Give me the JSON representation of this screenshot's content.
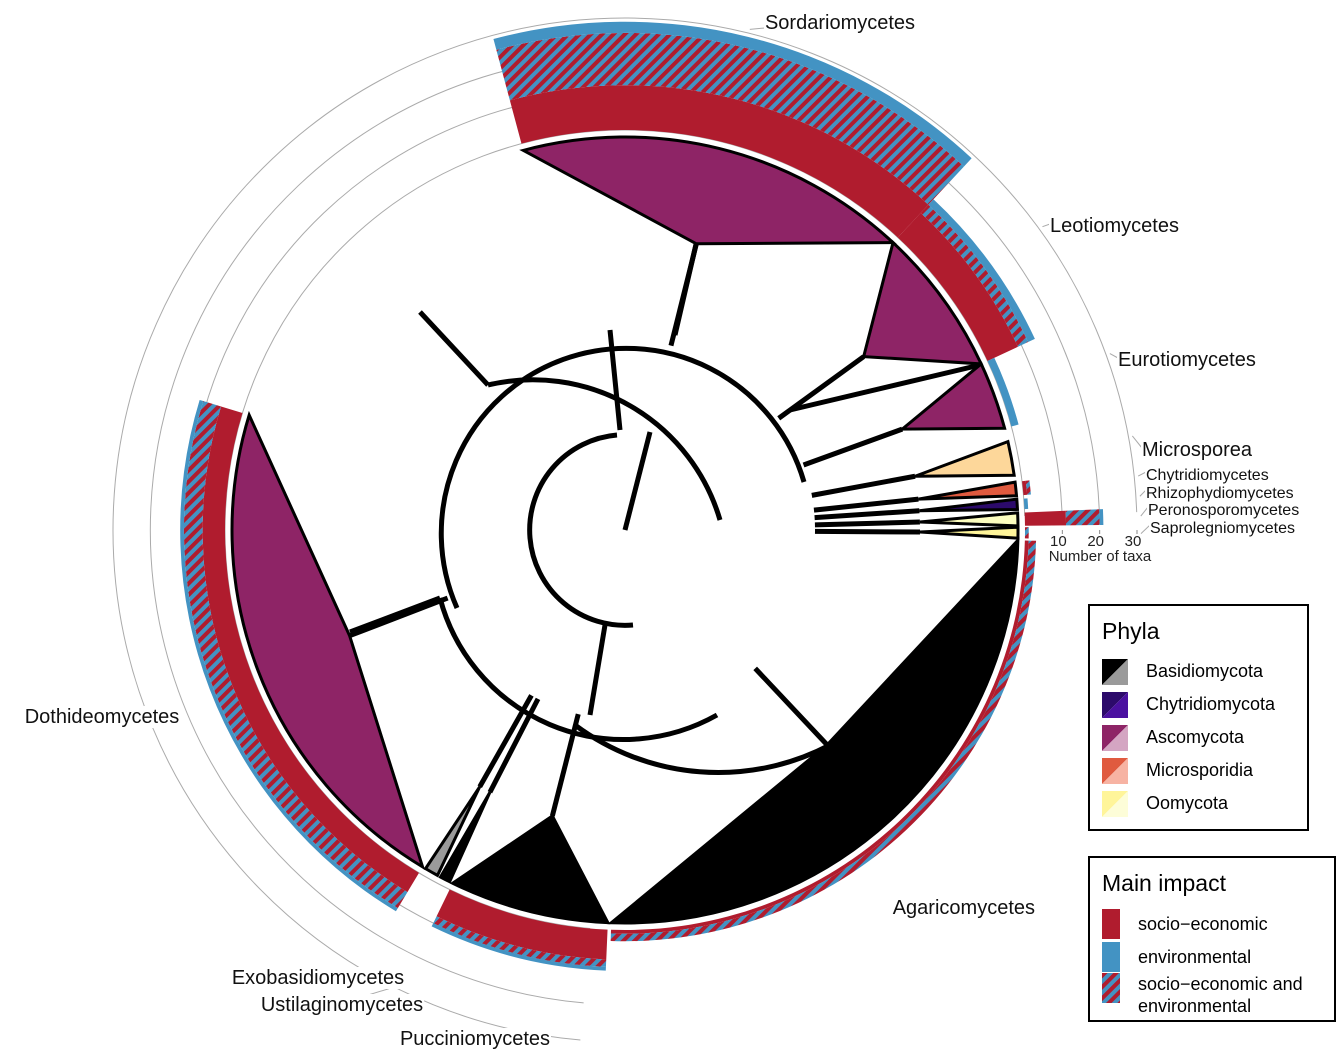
{
  "chart_data": {
    "type": "circular-tree",
    "axis_label": "Number of taxa",
    "ylim": [
      0,
      30
    ],
    "yticks": [
      10,
      20,
      30
    ],
    "classes": [
      {
        "name": "Sordariomycetes",
        "phylum": 2,
        "color": "#8e2466"
      },
      {
        "name": "Leotiomycetes",
        "phylum": 2,
        "color": "#8e2466"
      },
      {
        "name": "Eurotiomycetes",
        "phylum": 2,
        "color": "#8e2466"
      },
      {
        "name": "Microsporea",
        "phylum": 3,
        "color": "#fdd79a"
      },
      {
        "name": "Chytridiomycetes",
        "phylum": 1,
        "color": "#e05a3f"
      },
      {
        "name": "Rhizophydiomycetes",
        "phylum": 1,
        "color": "#2c0a6b"
      },
      {
        "name": "Peronosporomycetes",
        "phylum": 4,
        "color": "#fcfdbf"
      },
      {
        "name": "Saprolegniomycetes",
        "phylum": 4,
        "color": "#fff59a"
      },
      {
        "name": "Agaricomycetes",
        "phylum": 0,
        "color": "#000000"
      },
      {
        "name": "Pucciniomycetes",
        "phylum": 0,
        "color": "#000000"
      },
      {
        "name": "Ustilaginomycetes",
        "phylum": 0,
        "color": "#000000"
      },
      {
        "name": "Exobasidiomycetes",
        "phylum": 0,
        "color": "#9a9a9a"
      },
      {
        "name": "Dothideomycetes",
        "phylum": 2,
        "color": "#8e2466"
      }
    ],
    "phyla": {
      "title": "Phyla",
      "items": [
        {
          "name": "Basidiomycota",
          "color": "#000000",
          "light": "#9a9a9a"
        },
        {
          "name": "Chytridiomycota",
          "color": "#2c0a6b",
          "light": "#4a10a0"
        },
        {
          "name": "Ascomycota",
          "color": "#8e2466",
          "light": "#d4a5c2"
        },
        {
          "name": "Microsporidia",
          "color": "#e05a3f",
          "light": "#f7b3a3"
        },
        {
          "name": "Oomycota",
          "color": "#fff59a",
          "light": "#fdfdd8"
        }
      ]
    },
    "impact": {
      "title": "Main impact",
      "series": [
        {
          "name": "socio−economic",
          "color": "#b01c2e",
          "values": [
            12,
            9,
            0,
            0,
            1,
            0,
            11,
            0,
            1,
            8,
            0,
            0,
            6
          ]
        },
        {
          "name": "environmental",
          "color": "#4393c3",
          "values": [
            3,
            2,
            2,
            0,
            0,
            1,
            1,
            0,
            0,
            1,
            0,
            0,
            1
          ]
        },
        {
          "name": "socio−economic and environmental",
          "values": [
            14,
            3,
            0,
            0,
            1,
            0,
            9,
            1,
            2,
            2,
            0,
            0,
            5
          ]
        }
      ]
    }
  }
}
